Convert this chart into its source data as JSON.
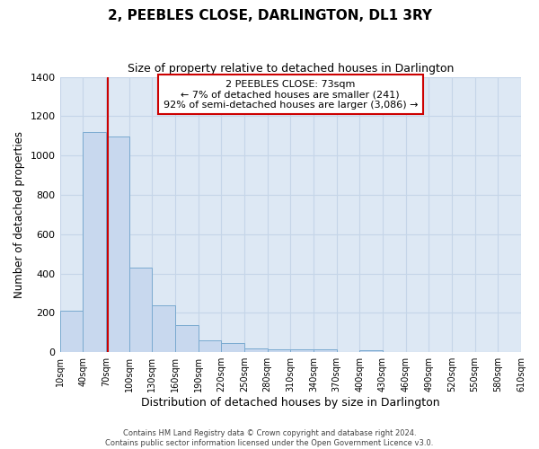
{
  "title": "2, PEEBLES CLOSE, DARLINGTON, DL1 3RY",
  "subtitle": "Size of property relative to detached houses in Darlington",
  "xlabel": "Distribution of detached houses by size in Darlington",
  "ylabel": "Number of detached properties",
  "footer_lines": [
    "Contains HM Land Registry data © Crown copyright and database right 2024.",
    "Contains public sector information licensed under the Open Government Licence v3.0."
  ],
  "bin_edges": [
    10,
    40,
    70,
    100,
    130,
    160,
    190,
    220,
    250,
    280,
    310,
    340,
    370,
    400,
    430,
    460,
    490,
    520,
    550,
    580,
    610
  ],
  "bar_values": [
    210,
    1120,
    1095,
    430,
    240,
    140,
    60,
    47,
    20,
    15,
    15,
    15,
    0,
    10,
    0,
    0,
    0,
    0,
    0,
    0
  ],
  "bar_color": "#c8d8ee",
  "bar_edgecolor": "#7aaad0",
  "grid_color": "#c5d5e8",
  "background_color": "#dde8f4",
  "ylim": [
    0,
    1400
  ],
  "yticks": [
    0,
    200,
    400,
    600,
    800,
    1000,
    1200,
    1400
  ],
  "property_line_x": 73,
  "property_line_color": "#cc0000",
  "annotation_title": "2 PEEBLES CLOSE: 73sqm",
  "annotation_line1": "← 7% of detached houses are smaller (241)",
  "annotation_line2": "92% of semi-detached houses are larger (3,086) →",
  "annotation_box_color": "#ffffff",
  "annotation_box_edgecolor": "#cc0000",
  "tick_labels": [
    "10sqm",
    "40sqm",
    "70sqm",
    "100sqm",
    "130sqm",
    "160sqm",
    "190sqm",
    "220sqm",
    "250sqm",
    "280sqm",
    "310sqm",
    "340sqm",
    "370sqm",
    "400sqm",
    "430sqm",
    "460sqm",
    "490sqm",
    "520sqm",
    "550sqm",
    "580sqm",
    "610sqm"
  ]
}
